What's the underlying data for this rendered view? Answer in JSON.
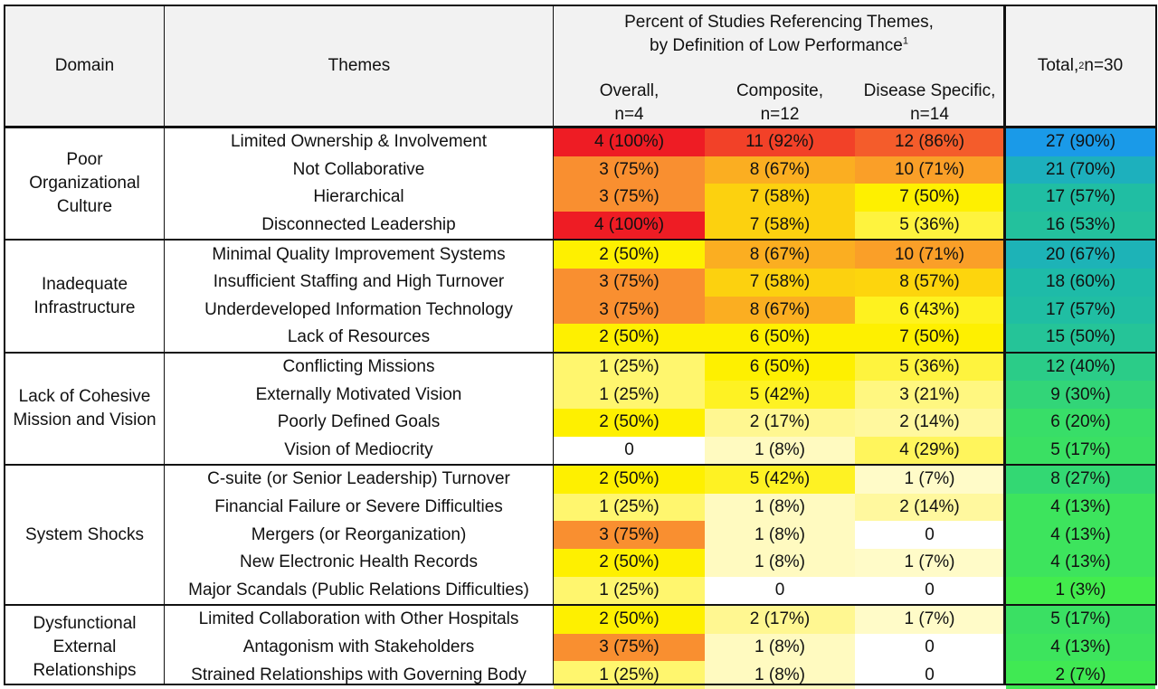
{
  "header": {
    "domain": "Domain",
    "themes": "Themes",
    "group_line1": "Percent of Studies Referencing Themes,",
    "group_line2": "by Definition of Low Performance",
    "group_sup": "1",
    "overall_name": "Overall,",
    "overall_n": "n=4",
    "composite_name": "Composite,",
    "composite_n": "n=12",
    "disease_name": "Disease Specific,",
    "disease_n": "n=14",
    "total_a": "Total,",
    "total_sup": "2",
    "total_b": " n=30"
  },
  "colors": {
    "header_bg": "#f2f2f2",
    "scale_low": "#ffffff",
    "scale_mid_light": "#fff9b0",
    "scale_mid": "#fef000",
    "scale_orange": "#f98f30",
    "scale_high": "#ee1c24",
    "total_low": "#45ef48",
    "total_mid": "#1ebba8",
    "total_high": "#1a9ae8"
  },
  "chart_data": {
    "type": "table",
    "columns": [
      "Domain",
      "Themes",
      "Overall, n=4",
      "Composite, n=12",
      "Disease Specific, n=14",
      "Total, n=30"
    ],
    "domains": [
      {
        "name": "Poor Organizational Culture",
        "label_lines": [
          "Poor",
          "Organizational",
          "Culture"
        ],
        "rows": [
          {
            "theme": "Limited Ownership & Involvement",
            "overall": "4 (100%)",
            "overall_pct": 100,
            "composite": "11 (92%)",
            "composite_pct": 92,
            "disease": "12 (86%)",
            "disease_pct": 86,
            "total": "27 (90%)",
            "total_pct": 90
          },
          {
            "theme": "Not Collaborative",
            "overall": "3 (75%)",
            "overall_pct": 75,
            "composite": "8 (67%)",
            "composite_pct": 67,
            "disease": "10 (71%)",
            "disease_pct": 71,
            "total": "21 (70%)",
            "total_pct": 70
          },
          {
            "theme": "Hierarchical",
            "overall": "3 (75%)",
            "overall_pct": 75,
            "composite": "7 (58%)",
            "composite_pct": 58,
            "disease": "7 (50%)",
            "disease_pct": 50,
            "total": "17 (57%)",
            "total_pct": 57
          },
          {
            "theme": "Disconnected Leadership",
            "overall": "4 (100%)",
            "overall_pct": 100,
            "composite": "7 (58%)",
            "composite_pct": 58,
            "disease": "5 (36%)",
            "disease_pct": 36,
            "total": "16 (53%)",
            "total_pct": 53
          }
        ]
      },
      {
        "name": "Inadequate Infrastructure",
        "label_lines": [
          "Inadequate",
          "Infrastructure"
        ],
        "rows": [
          {
            "theme": "Minimal Quality Improvement Systems",
            "overall": "2 (50%)",
            "overall_pct": 50,
            "composite": "8 (67%)",
            "composite_pct": 67,
            "disease": "10 (71%)",
            "disease_pct": 71,
            "total": "20 (67%)",
            "total_pct": 67
          },
          {
            "theme": "Insufficient Staffing and High Turnover",
            "overall": "3 (75%)",
            "overall_pct": 75,
            "composite": "7 (58%)",
            "composite_pct": 58,
            "disease": "8 (57%)",
            "disease_pct": 57,
            "total": "18 (60%)",
            "total_pct": 60
          },
          {
            "theme": "Underdeveloped Information Technology",
            "overall": "3 (75%)",
            "overall_pct": 75,
            "composite": "8 (67%)",
            "composite_pct": 67,
            "disease": "6 (43%)",
            "disease_pct": 43,
            "total": "17 (57%)",
            "total_pct": 57
          },
          {
            "theme": "Lack of Resources",
            "overall": "2 (50%)",
            "overall_pct": 50,
            "composite": "6 (50%)",
            "composite_pct": 50,
            "disease": "7 (50%)",
            "disease_pct": 50,
            "total": "15 (50%)",
            "total_pct": 50
          }
        ]
      },
      {
        "name": "Lack of Cohesive Mission and Vision",
        "label_lines": [
          "Lack of Cohesive",
          "Mission and Vision"
        ],
        "rows": [
          {
            "theme": "Conflicting Missions",
            "overall": "1 (25%)",
            "overall_pct": 25,
            "composite": "6 (50%)",
            "composite_pct": 50,
            "disease": "5 (36%)",
            "disease_pct": 36,
            "total": "12 (40%)",
            "total_pct": 40
          },
          {
            "theme": "Externally Motivated Vision",
            "overall": "1 (25%)",
            "overall_pct": 25,
            "composite": "5 (42%)",
            "composite_pct": 42,
            "disease": "3 (21%)",
            "disease_pct": 21,
            "total": "9 (30%)",
            "total_pct": 30
          },
          {
            "theme": "Poorly Defined Goals",
            "overall": "2 (50%)",
            "overall_pct": 50,
            "composite": "2 (17%)",
            "composite_pct": 17,
            "disease": "2 (14%)",
            "disease_pct": 14,
            "total": "6 (20%)",
            "total_pct": 20
          },
          {
            "theme": "Vision of Mediocrity",
            "overall": "0",
            "overall_pct": 0,
            "composite": "1 (8%)",
            "composite_pct": 8,
            "disease": "4 (29%)",
            "disease_pct": 29,
            "total": "5 (17%)",
            "total_pct": 17
          }
        ]
      },
      {
        "name": "System Shocks",
        "label_lines": [
          "System Shocks"
        ],
        "rows": [
          {
            "theme": "C-suite (or Senior Leadership) Turnover",
            "overall": "2 (50%)",
            "overall_pct": 50,
            "composite": "5 (42%)",
            "composite_pct": 42,
            "disease": "1 (7%)",
            "disease_pct": 7,
            "total": "8 (27%)",
            "total_pct": 27
          },
          {
            "theme": "Financial Failure or Severe Difficulties",
            "overall": "1 (25%)",
            "overall_pct": 25,
            "composite": "1 (8%)",
            "composite_pct": 8,
            "disease": "2 (14%)",
            "disease_pct": 14,
            "total": "4 (13%)",
            "total_pct": 13
          },
          {
            "theme": "Mergers (or Reorganization)",
            "overall": "3 (75%)",
            "overall_pct": 75,
            "composite": "1 (8%)",
            "composite_pct": 8,
            "disease": "0",
            "disease_pct": 0,
            "total": "4 (13%)",
            "total_pct": 13
          },
          {
            "theme": "New Electronic Health Records",
            "overall": "2 (50%)",
            "overall_pct": 50,
            "composite": "1 (8%)",
            "composite_pct": 8,
            "disease": "1 (7%)",
            "disease_pct": 7,
            "total": "4 (13%)",
            "total_pct": 13
          },
          {
            "theme": "Major Scandals (Public Relations Difficulties)",
            "overall": "1 (25%)",
            "overall_pct": 25,
            "composite": "0",
            "composite_pct": 0,
            "disease": "0",
            "disease_pct": 0,
            "total": "1 (3%)",
            "total_pct": 3
          }
        ]
      },
      {
        "name": "Dysfunctional External Relationships",
        "label_lines": [
          "Dysfunctional",
          "External",
          "Relationships"
        ],
        "rows": [
          {
            "theme": "Limited Collaboration with Other Hospitals",
            "overall": "2 (50%)",
            "overall_pct": 50,
            "composite": "2 (17%)",
            "composite_pct": 17,
            "disease": "1 (7%)",
            "disease_pct": 7,
            "total": "5 (17%)",
            "total_pct": 17
          },
          {
            "theme": "Antagonism with Stakeholders",
            "overall": "3 (75%)",
            "overall_pct": 75,
            "composite": "1 (8%)",
            "composite_pct": 8,
            "disease": "0",
            "disease_pct": 0,
            "total": "4 (13%)",
            "total_pct": 13
          },
          {
            "theme": "Strained Relationships with Governing Body",
            "overall": "1 (25%)",
            "overall_pct": 25,
            "composite": "1 (8%)",
            "composite_pct": 8,
            "disease": "0",
            "disease_pct": 0,
            "total": "2 (7%)",
            "total_pct": 7
          }
        ]
      }
    ]
  }
}
